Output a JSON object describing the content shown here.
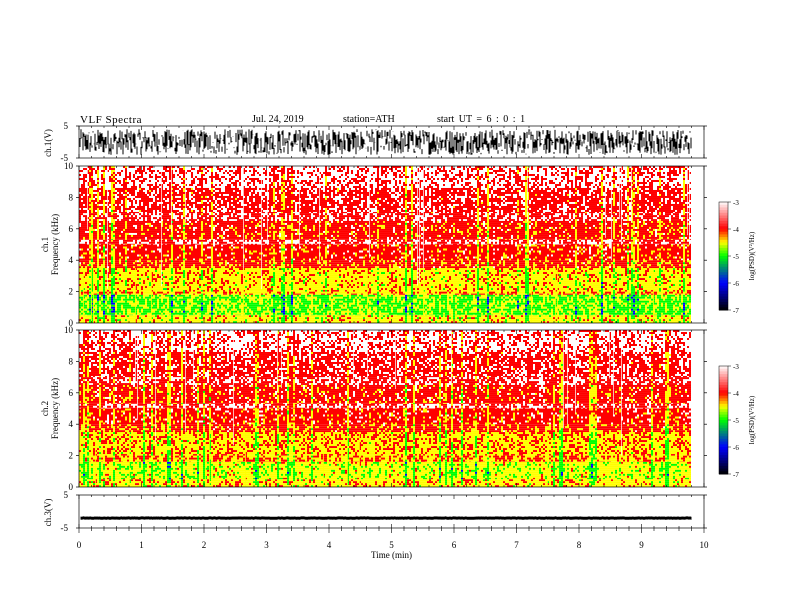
{
  "header": {
    "title": "VLF  Spectra",
    "date": "Jul.  24, 2019",
    "station": "station=ATH",
    "start": "start  UT  =    6  : 0   : 1"
  },
  "colors": {
    "white": "#ffffff",
    "red": "#ff0000",
    "yellow": "#ffff00",
    "green": "#00ff00",
    "blue": "#0000ff",
    "black": "#000000"
  },
  "chart_data": [
    {
      "type": "line",
      "name": "ch1-waveform",
      "ylabel": "ch.1(V)",
      "ylim": [
        -5,
        5
      ],
      "yticks": [
        "5",
        "-5"
      ],
      "xlim": [
        0,
        10
      ],
      "description_values": {
        "amplitude_range_V": [
          -4,
          4
        ]
      }
    },
    {
      "type": "heatmap",
      "name": "ch1-spectrogram",
      "ylabel": "ch.1\nFrequency  (kHz)",
      "xlim": [
        0,
        9.8
      ],
      "ylim": [
        0,
        10
      ],
      "yticks": [
        "0",
        "2",
        "4",
        "6",
        "8",
        "10"
      ],
      "colorbar": {
        "label": "log(PSD)(V²/Hz)",
        "range": [
          -7,
          -3
        ],
        "ticks": [
          "-3",
          "-4",
          "-5",
          "-6",
          "-7"
        ]
      },
      "bands": [
        {
          "from": 0.0,
          "to": 0.5,
          "level": -4.5
        },
        {
          "from": 0.5,
          "to": 1.8,
          "level": -4.9
        },
        {
          "from": 1.8,
          "to": 2.0,
          "level": -4.2
        },
        {
          "from": 2.0,
          "to": 3.5,
          "level": -4.4
        },
        {
          "from": 3.5,
          "to": 4.0,
          "level": -3.9
        },
        {
          "from": 4.0,
          "to": 5.0,
          "level": -3.8
        },
        {
          "from": 5.0,
          "to": 5.3,
          "level": -3.4
        },
        {
          "from": 5.3,
          "to": 6.5,
          "level": -3.8
        },
        {
          "from": 6.5,
          "to": 7.0,
          "level": -3.5
        },
        {
          "from": 7.0,
          "to": 8.6,
          "level": -3.6
        },
        {
          "from": 8.6,
          "to": 10.0,
          "level": -3.3
        }
      ]
    },
    {
      "type": "heatmap",
      "name": "ch2-spectrogram",
      "ylabel": "ch.2\nFrequency  (kHz)",
      "xlim": [
        0,
        9.8
      ],
      "ylim": [
        0,
        10
      ],
      "yticks": [
        "0",
        "2",
        "4",
        "6",
        "8",
        "10"
      ],
      "colorbar": {
        "label": "log(PSD)(V²/Hz)",
        "range": [
          -7,
          -3
        ],
        "ticks": [
          "-3",
          "-4",
          "-5",
          "-6",
          "-7"
        ]
      },
      "bands": [
        {
          "from": 0.0,
          "to": 0.5,
          "level": -4.4
        },
        {
          "from": 0.5,
          "to": 1.6,
          "level": -4.6
        },
        {
          "from": 1.6,
          "to": 2.0,
          "level": -4.2
        },
        {
          "from": 2.0,
          "to": 3.5,
          "level": -4.3
        },
        {
          "from": 3.5,
          "to": 4.0,
          "level": -3.9
        },
        {
          "from": 4.0,
          "to": 5.0,
          "level": -3.8
        },
        {
          "from": 5.0,
          "to": 5.3,
          "level": -3.4
        },
        {
          "from": 5.3,
          "to": 6.5,
          "level": -3.8
        },
        {
          "from": 6.5,
          "to": 7.0,
          "level": -3.5
        },
        {
          "from": 7.0,
          "to": 8.6,
          "level": -3.6
        },
        {
          "from": 8.6,
          "to": 10.0,
          "level": -3.3
        }
      ]
    },
    {
      "type": "line",
      "name": "ch3-waveform",
      "ylabel": "ch.3(V)",
      "ylim": [
        -5,
        5
      ],
      "yticks": [
        "5",
        "-5"
      ],
      "xlim": [
        0,
        10
      ],
      "xlabel": "Time  (min)",
      "xticks": [
        "0",
        "1",
        "2",
        "3",
        "4",
        "5",
        "6",
        "7",
        "8",
        "9",
        "10"
      ],
      "description_values": {
        "level_V": -2.0
      }
    }
  ]
}
